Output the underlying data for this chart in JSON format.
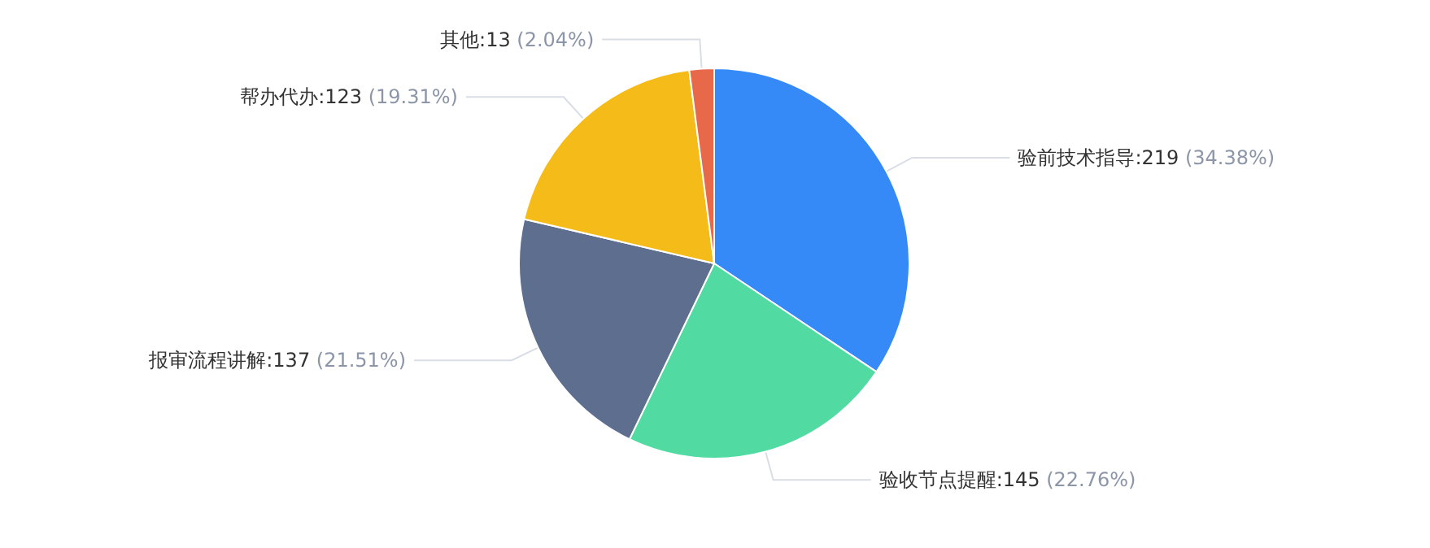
{
  "chart_data": {
    "type": "pie",
    "categories": [
      "验前技术指导",
      "验收节点提醒",
      "报审流程讲解",
      "帮办代办",
      "其他"
    ],
    "values": [
      219,
      145,
      137,
      123,
      13
    ],
    "value_labels": [
      "219 (34.38%)",
      "145 (22.76%)",
      "137 (21.51%)",
      "123 (19.31%)",
      "13 (2.04%)"
    ],
    "colors": [
      "#358af8",
      "#51dba3",
      "#5d6e8f",
      "#f5bc19",
      "#e8684a"
    ]
  }
}
